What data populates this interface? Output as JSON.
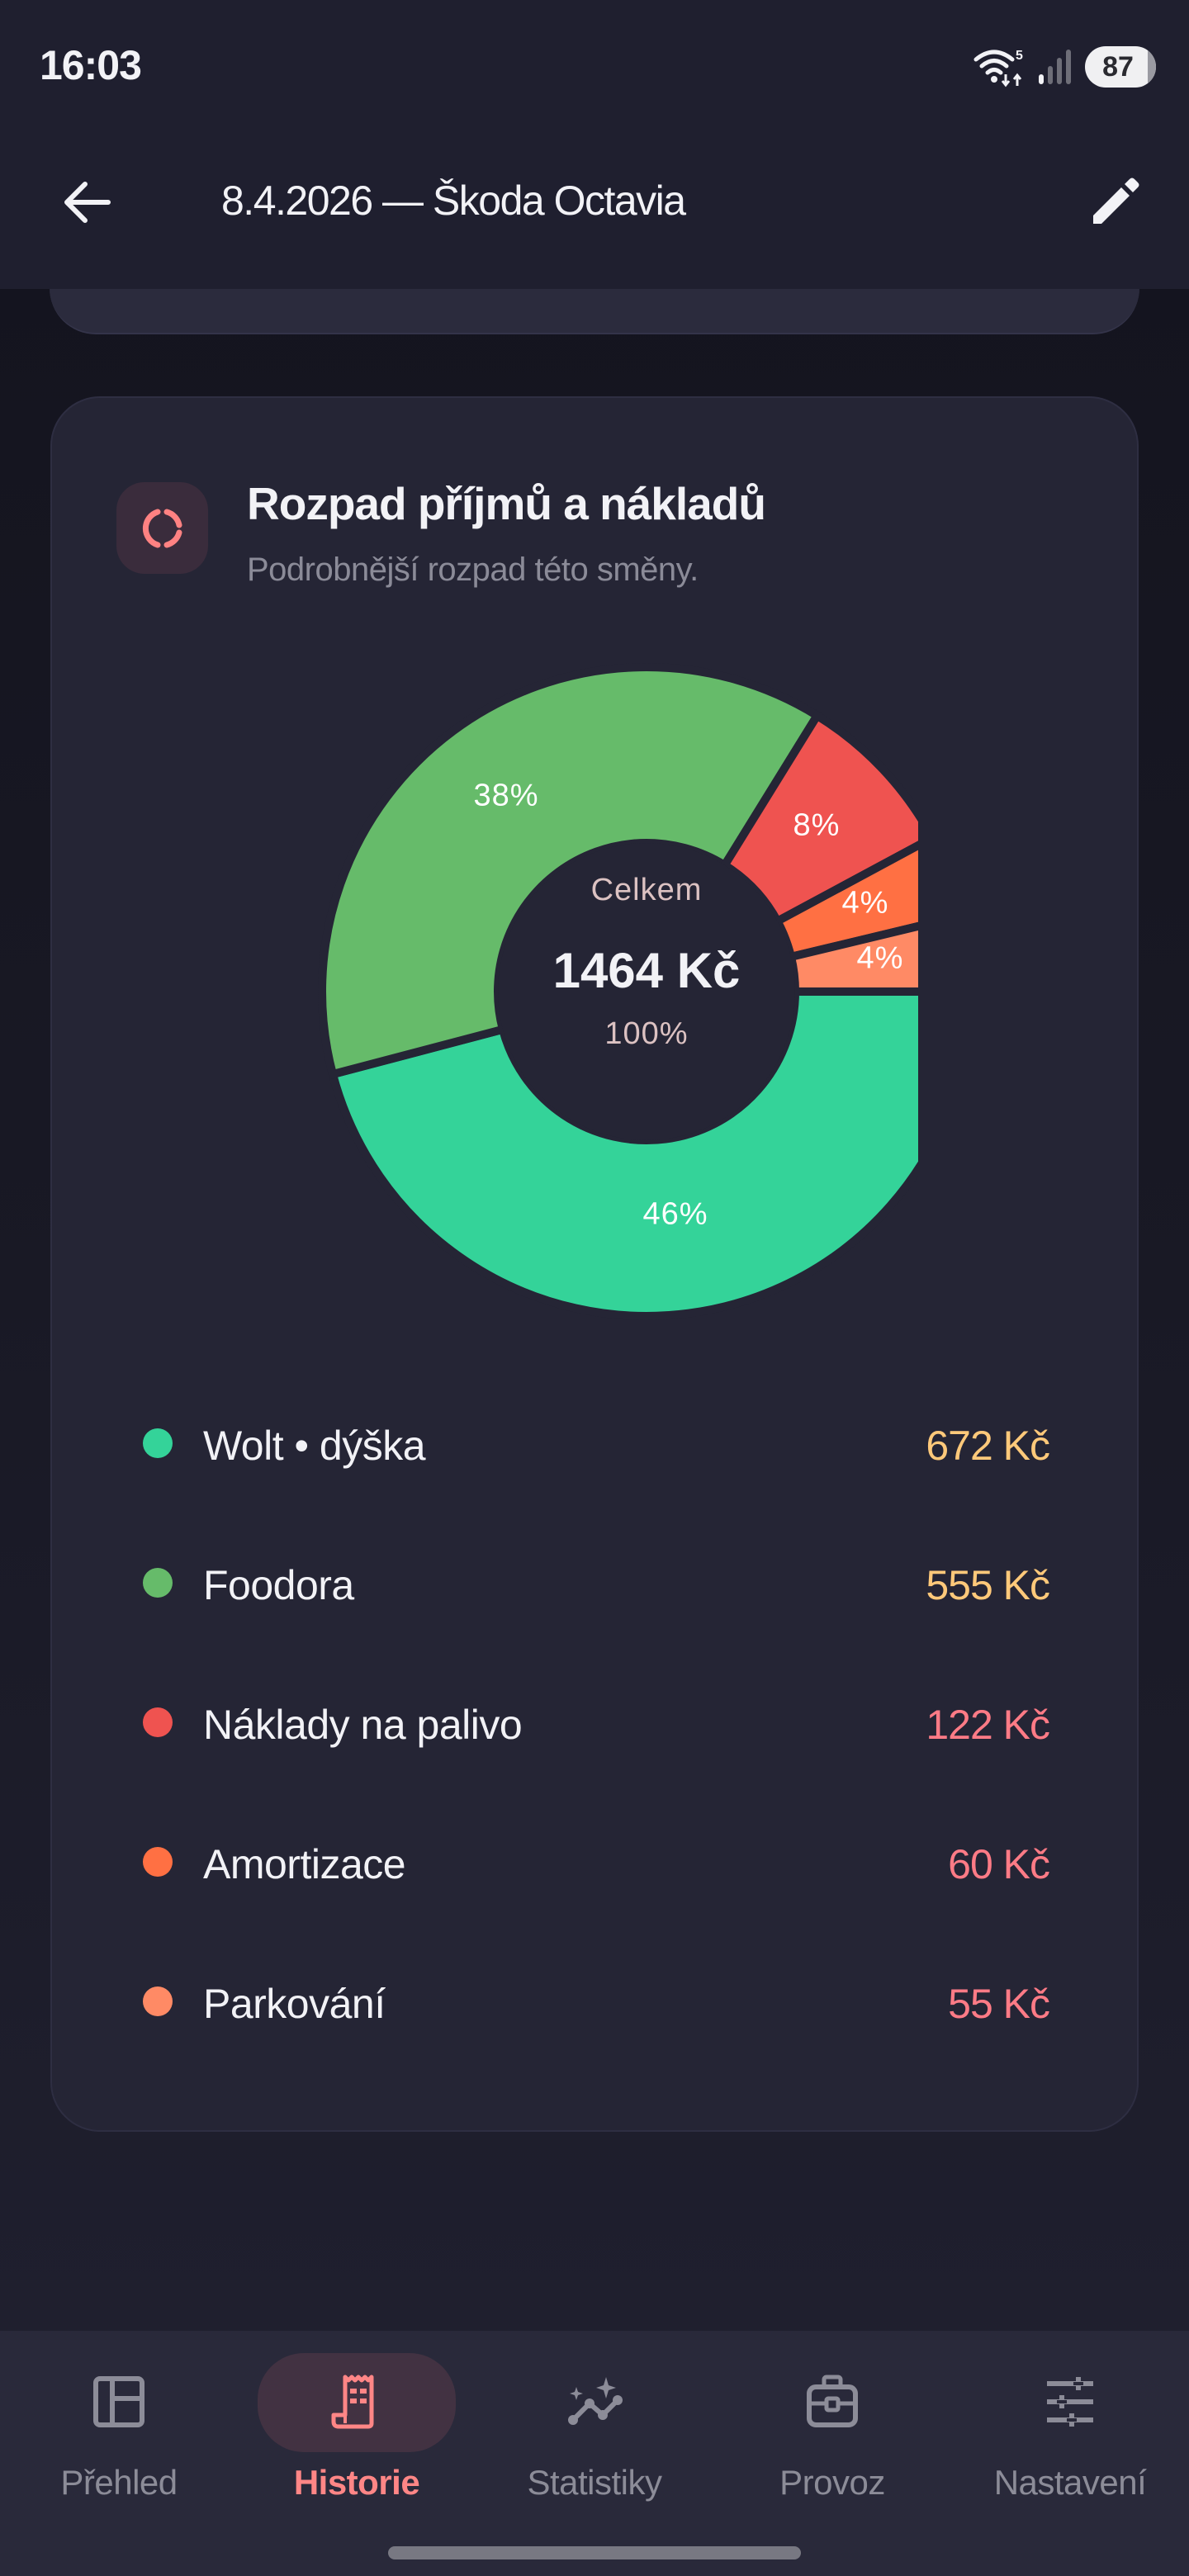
{
  "status_bar": {
    "time": "16:03",
    "wifi_icon": "wifi-icon",
    "wifi_label": "5",
    "signal_icon": "cellular-signal-icon",
    "battery": "87"
  },
  "header": {
    "back_icon": "arrow-left-icon",
    "title": "8.4.2026 — Škoda Octavia",
    "edit_icon": "pencil-icon"
  },
  "card": {
    "icon": "donut-chart-icon",
    "title": "Rozpad příjmů a nákladů",
    "subtitle": "Podrobnější rozpad této směny.",
    "center": {
      "caption": "Celkem",
      "total": "1464 Kč",
      "percent": "100%"
    },
    "legend": [
      {
        "label": "Wolt • dýška",
        "value": "672 Kč",
        "color": "#34d399",
        "value_color": "#ffc97a"
      },
      {
        "label": "Foodora",
        "value": "555 Kč",
        "color": "#66bb6a",
        "value_color": "#ffc97a"
      },
      {
        "label": "Náklady na palivo",
        "value": "122 Kč",
        "color": "#ef5350",
        "value_color": "#ff7b86"
      },
      {
        "label": "Amortizace",
        "value": "60 Kč",
        "color": "#ff7043",
        "value_color": "#ff7b86"
      },
      {
        "label": "Parkování",
        "value": "55 Kč",
        "color": "#ff8a65",
        "value_color": "#ff7b86"
      }
    ]
  },
  "chart_data": {
    "type": "pie",
    "title": "Rozpad příjmů a nákladů",
    "subtitle": "Podrobnější rozpad této směny.",
    "donut": true,
    "center_text": [
      "Celkem",
      "1464 Kč",
      "100%"
    ],
    "categories": [
      "Wolt • dýška",
      "Foodora",
      "Náklady na palivo",
      "Amortizace",
      "Parkování"
    ],
    "values": [
      672,
      555,
      122,
      60,
      55
    ],
    "percent_labels": [
      "46%",
      "38%",
      "8%",
      "4%",
      "4%"
    ],
    "colors": [
      "#34d399",
      "#66bb6a",
      "#ef5350",
      "#ff7043",
      "#ff8a65"
    ],
    "unit": "Kč",
    "total": 1464,
    "start_angle": "3 o'clock, clockwise",
    "legend_position": "below"
  },
  "bottom_nav": {
    "items": [
      {
        "label": "Přehled",
        "icon": "dashboard-layout-icon",
        "active": false
      },
      {
        "label": "Historie",
        "icon": "receipt-icon",
        "active": true
      },
      {
        "label": "Statistiky",
        "icon": "trend-sparkle-icon",
        "active": false
      },
      {
        "label": "Provoz",
        "icon": "briefcase-icon",
        "active": false
      },
      {
        "label": "Nastavení",
        "icon": "sliders-icon",
        "active": false
      }
    ]
  },
  "colors": {
    "accent": "#ff8686",
    "background": "#191925",
    "card": "#252535",
    "header": "#1f1f2f",
    "nav": "#29293a"
  }
}
